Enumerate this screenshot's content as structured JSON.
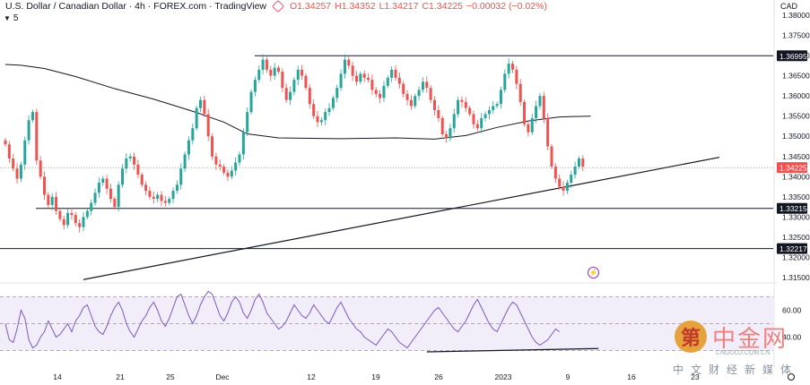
{
  "header": {
    "title": "U.S. Dollar / Canadian Dollar · 4h · FOREX.com · TradingView",
    "open": "O1.34257",
    "high": "H1.34352",
    "low": "L1.34217",
    "close": "C1.34225",
    "change": "−0.00032 (−0.02%)",
    "indicator_count": "5"
  },
  "currency": "CAD",
  "watermark": {
    "brand": "中金网",
    "url": "CNGOLD.COM.CN",
    "tagline": "中文财经新媒体"
  },
  "colors": {
    "up": "#26a69a",
    "down": "#ef5350",
    "rsi": "#7e57c2",
    "ma": "#131722"
  },
  "chart_data": [
    {
      "type": "candlestick",
      "ylim": [
        1.315,
        1.38
      ],
      "y_ticks": [
        "1.38000",
        "1.37500",
        "1.37000",
        "1.36500",
        "1.36000",
        "1.35500",
        "1.35000",
        "1.34500",
        "1.34000",
        "1.33500",
        "1.33000",
        "1.32500",
        "1.32000",
        "1.31500"
      ],
      "x_ticks": [
        "14",
        "21",
        "25",
        "Dec",
        "12",
        "19",
        "26",
        "2023",
        "9",
        "16",
        "23"
      ],
      "price_labels": [
        {
          "value": 1.36995,
          "label": "1.36995",
          "style": "dark"
        },
        {
          "value": 1.34225,
          "label": "1.34225",
          "style": "red"
        },
        {
          "value": 1.33215,
          "label": "1.33215",
          "style": "dark"
        },
        {
          "value": 1.32217,
          "label": "1.32217",
          "style": "dark"
        }
      ],
      "horizontal_lines": [
        1.36995,
        1.33215,
        1.32217
      ],
      "current_price": 1.34225,
      "close_path": [
        1.348,
        1.3445,
        1.342,
        1.3395,
        1.343,
        1.349,
        1.354,
        1.356,
        1.344,
        1.34,
        1.3355,
        1.333,
        1.335,
        1.3315,
        1.3295,
        1.328,
        1.331,
        1.3305,
        1.3285,
        1.3275,
        1.33,
        1.3315,
        1.3335,
        1.336,
        1.3385,
        1.3395,
        1.337,
        1.3345,
        1.3325,
        1.338,
        1.342,
        1.3445,
        1.345,
        1.343,
        1.3405,
        1.338,
        1.3365,
        1.335,
        1.3345,
        1.3355,
        1.334,
        1.3335,
        1.3345,
        1.3365,
        1.338,
        1.342,
        1.3455,
        1.349,
        1.352,
        1.357,
        1.359,
        1.3555,
        1.35,
        1.345,
        1.343,
        1.3425,
        1.341,
        1.34,
        1.3415,
        1.3435,
        1.3455,
        1.351,
        1.356,
        1.361,
        1.364,
        1.3665,
        1.369,
        1.3665,
        1.365,
        1.367,
        1.366,
        1.362,
        1.359,
        1.361,
        1.364,
        1.3665,
        1.365,
        1.362,
        1.358,
        1.355,
        1.3535,
        1.354,
        1.356,
        1.357,
        1.3595,
        1.362,
        1.3655,
        1.369,
        1.3675,
        1.365,
        1.3635,
        1.3655,
        1.3645,
        1.364,
        1.3615,
        1.3605,
        1.3595,
        1.3625,
        1.3645,
        1.3665,
        1.3645,
        1.363,
        1.3605,
        1.359,
        1.3575,
        1.36,
        1.3615,
        1.3635,
        1.362,
        1.359,
        1.3565,
        1.3545,
        1.3505,
        1.3495,
        1.352,
        1.3555,
        1.359,
        1.3585,
        1.357,
        1.3555,
        1.353,
        1.352,
        1.3545,
        1.3555,
        1.3565,
        1.3575,
        1.358,
        1.3615,
        1.3655,
        1.368,
        1.3665,
        1.363,
        1.3585,
        1.353,
        1.351,
        1.3545,
        1.3575,
        1.36,
        1.3545,
        1.3475,
        1.3425,
        1.3395,
        1.3375,
        1.3365,
        1.3385,
        1.3405,
        1.3425,
        1.3445,
        1.3425
      ],
      "moving_average": [
        {
          "bar": 0,
          "value": 1.3678
        },
        {
          "bar": 4,
          "value": 1.3676
        },
        {
          "bar": 10,
          "value": 1.3668
        },
        {
          "bar": 18,
          "value": 1.3648
        },
        {
          "bar": 28,
          "value": 1.3618
        },
        {
          "bar": 38,
          "value": 1.3592
        },
        {
          "bar": 48,
          "value": 1.3562
        },
        {
          "bar": 56,
          "value": 1.3535
        },
        {
          "bar": 62,
          "value": 1.3506
        },
        {
          "bar": 70,
          "value": 1.3496
        },
        {
          "bar": 85,
          "value": 1.3494
        },
        {
          "bar": 100,
          "value": 1.3496
        },
        {
          "bar": 110,
          "value": 1.3493
        },
        {
          "bar": 118,
          "value": 1.3502
        },
        {
          "bar": 126,
          "value": 1.3522
        },
        {
          "bar": 134,
          "value": 1.3538
        },
        {
          "bar": 142,
          "value": 1.3548
        },
        {
          "bar": 150,
          "value": 1.355
        }
      ],
      "trendline": [
        {
          "bar": 20,
          "value": 1.3145
        },
        {
          "bar": 183,
          "value": 1.3448
        }
      ]
    },
    {
      "type": "line",
      "name": "RSI",
      "y_ticks": [
        "60.00",
        "40.00"
      ],
      "levels": [
        70,
        50,
        30
      ],
      "values": [
        50,
        38,
        36,
        46,
        60,
        54,
        38,
        32,
        34,
        40,
        44,
        52,
        46,
        40,
        42,
        46,
        50,
        44,
        52,
        56,
        62,
        64,
        56,
        48,
        44,
        42,
        48,
        56,
        62,
        66,
        60,
        50,
        44,
        40,
        46,
        52,
        56,
        62,
        66,
        60,
        52,
        48,
        54,
        62,
        70,
        72,
        64,
        56,
        50,
        56,
        64,
        70,
        74,
        72,
        64,
        56,
        52,
        58,
        66,
        70,
        66,
        58,
        54,
        60,
        68,
        72,
        66,
        58,
        54,
        50,
        46,
        48,
        52,
        58,
        64,
        60,
        56,
        54,
        58,
        64,
        60,
        56,
        52,
        50,
        56,
        62,
        66,
        60,
        54,
        50,
        46,
        44,
        40,
        38,
        36,
        34,
        38,
        42,
        46,
        44,
        40,
        36,
        34,
        32,
        36,
        40,
        44,
        48,
        52,
        56,
        60,
        62,
        58,
        54,
        50,
        46,
        44,
        48,
        52,
        58,
        64,
        68,
        62,
        56,
        50,
        46,
        44,
        50,
        56,
        62,
        66,
        64,
        58,
        52,
        46,
        40,
        36,
        34,
        36,
        38,
        42,
        46,
        44
      ],
      "trendline": [
        {
          "bar": 108,
          "value": 29
        },
        {
          "bar": 152,
          "value": 31.5
        }
      ]
    }
  ]
}
